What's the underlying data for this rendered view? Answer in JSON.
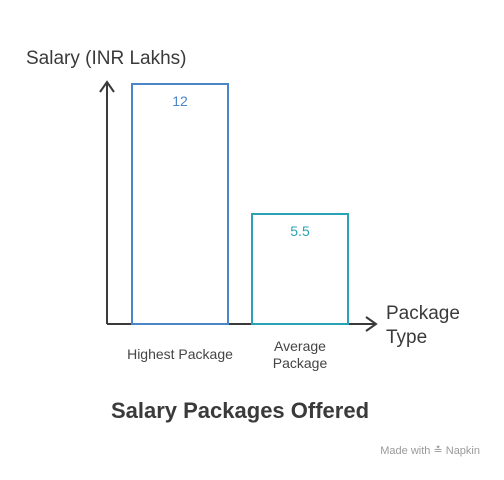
{
  "chart_data": {
    "type": "bar",
    "title": "Salary Packages Offered",
    "ylabel": "Salary (INR Lakhs)",
    "xlabel": "Package Type",
    "categories": [
      "Highest Package",
      "Average Package"
    ],
    "values": [
      12,
      5.5
    ],
    "ylim": [
      0,
      12
    ],
    "grid": false,
    "bar_colors": [
      "#4a86c8",
      "#2aa3b8"
    ]
  },
  "watermark": {
    "text": "Made with",
    "brand": "Napkin",
    "icon": "napkin-logo-icon"
  }
}
